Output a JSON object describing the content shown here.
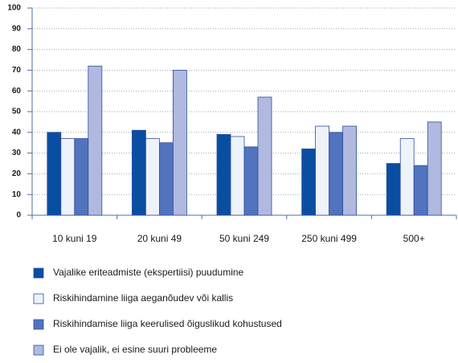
{
  "chart_data": {
    "type": "bar",
    "categories": [
      "10 kuni 19",
      "20 kuni 49",
      "50 kuni 249",
      "250 kuni 499",
      "500+"
    ],
    "series": [
      {
        "name": "Vajalike eriteadmiste (ekspertiisi) puudumine",
        "color": "#0a4ea2",
        "values": [
          40,
          41,
          39,
          32,
          25
        ]
      },
      {
        "name": "Riskihindamine liiga aeganõudev või kallis",
        "color": "#eef2fa",
        "values": [
          37,
          37,
          38,
          43,
          37
        ]
      },
      {
        "name": "Riskihindamise liiga keerulised õiguslikud kohustused",
        "color": "#5273bd",
        "values": [
          37,
          35,
          33,
          40,
          24
        ]
      },
      {
        "name": "Ei ole vajalik, ei esine suuri probleeme",
        "color": "#b1b9e0",
        "values": [
          72,
          70,
          57,
          43,
          45
        ]
      }
    ],
    "ylim": [
      0,
      100
    ],
    "yticks": [
      0,
      10,
      20,
      30,
      40,
      50,
      60,
      70,
      80,
      90,
      100
    ],
    "grid": true
  }
}
